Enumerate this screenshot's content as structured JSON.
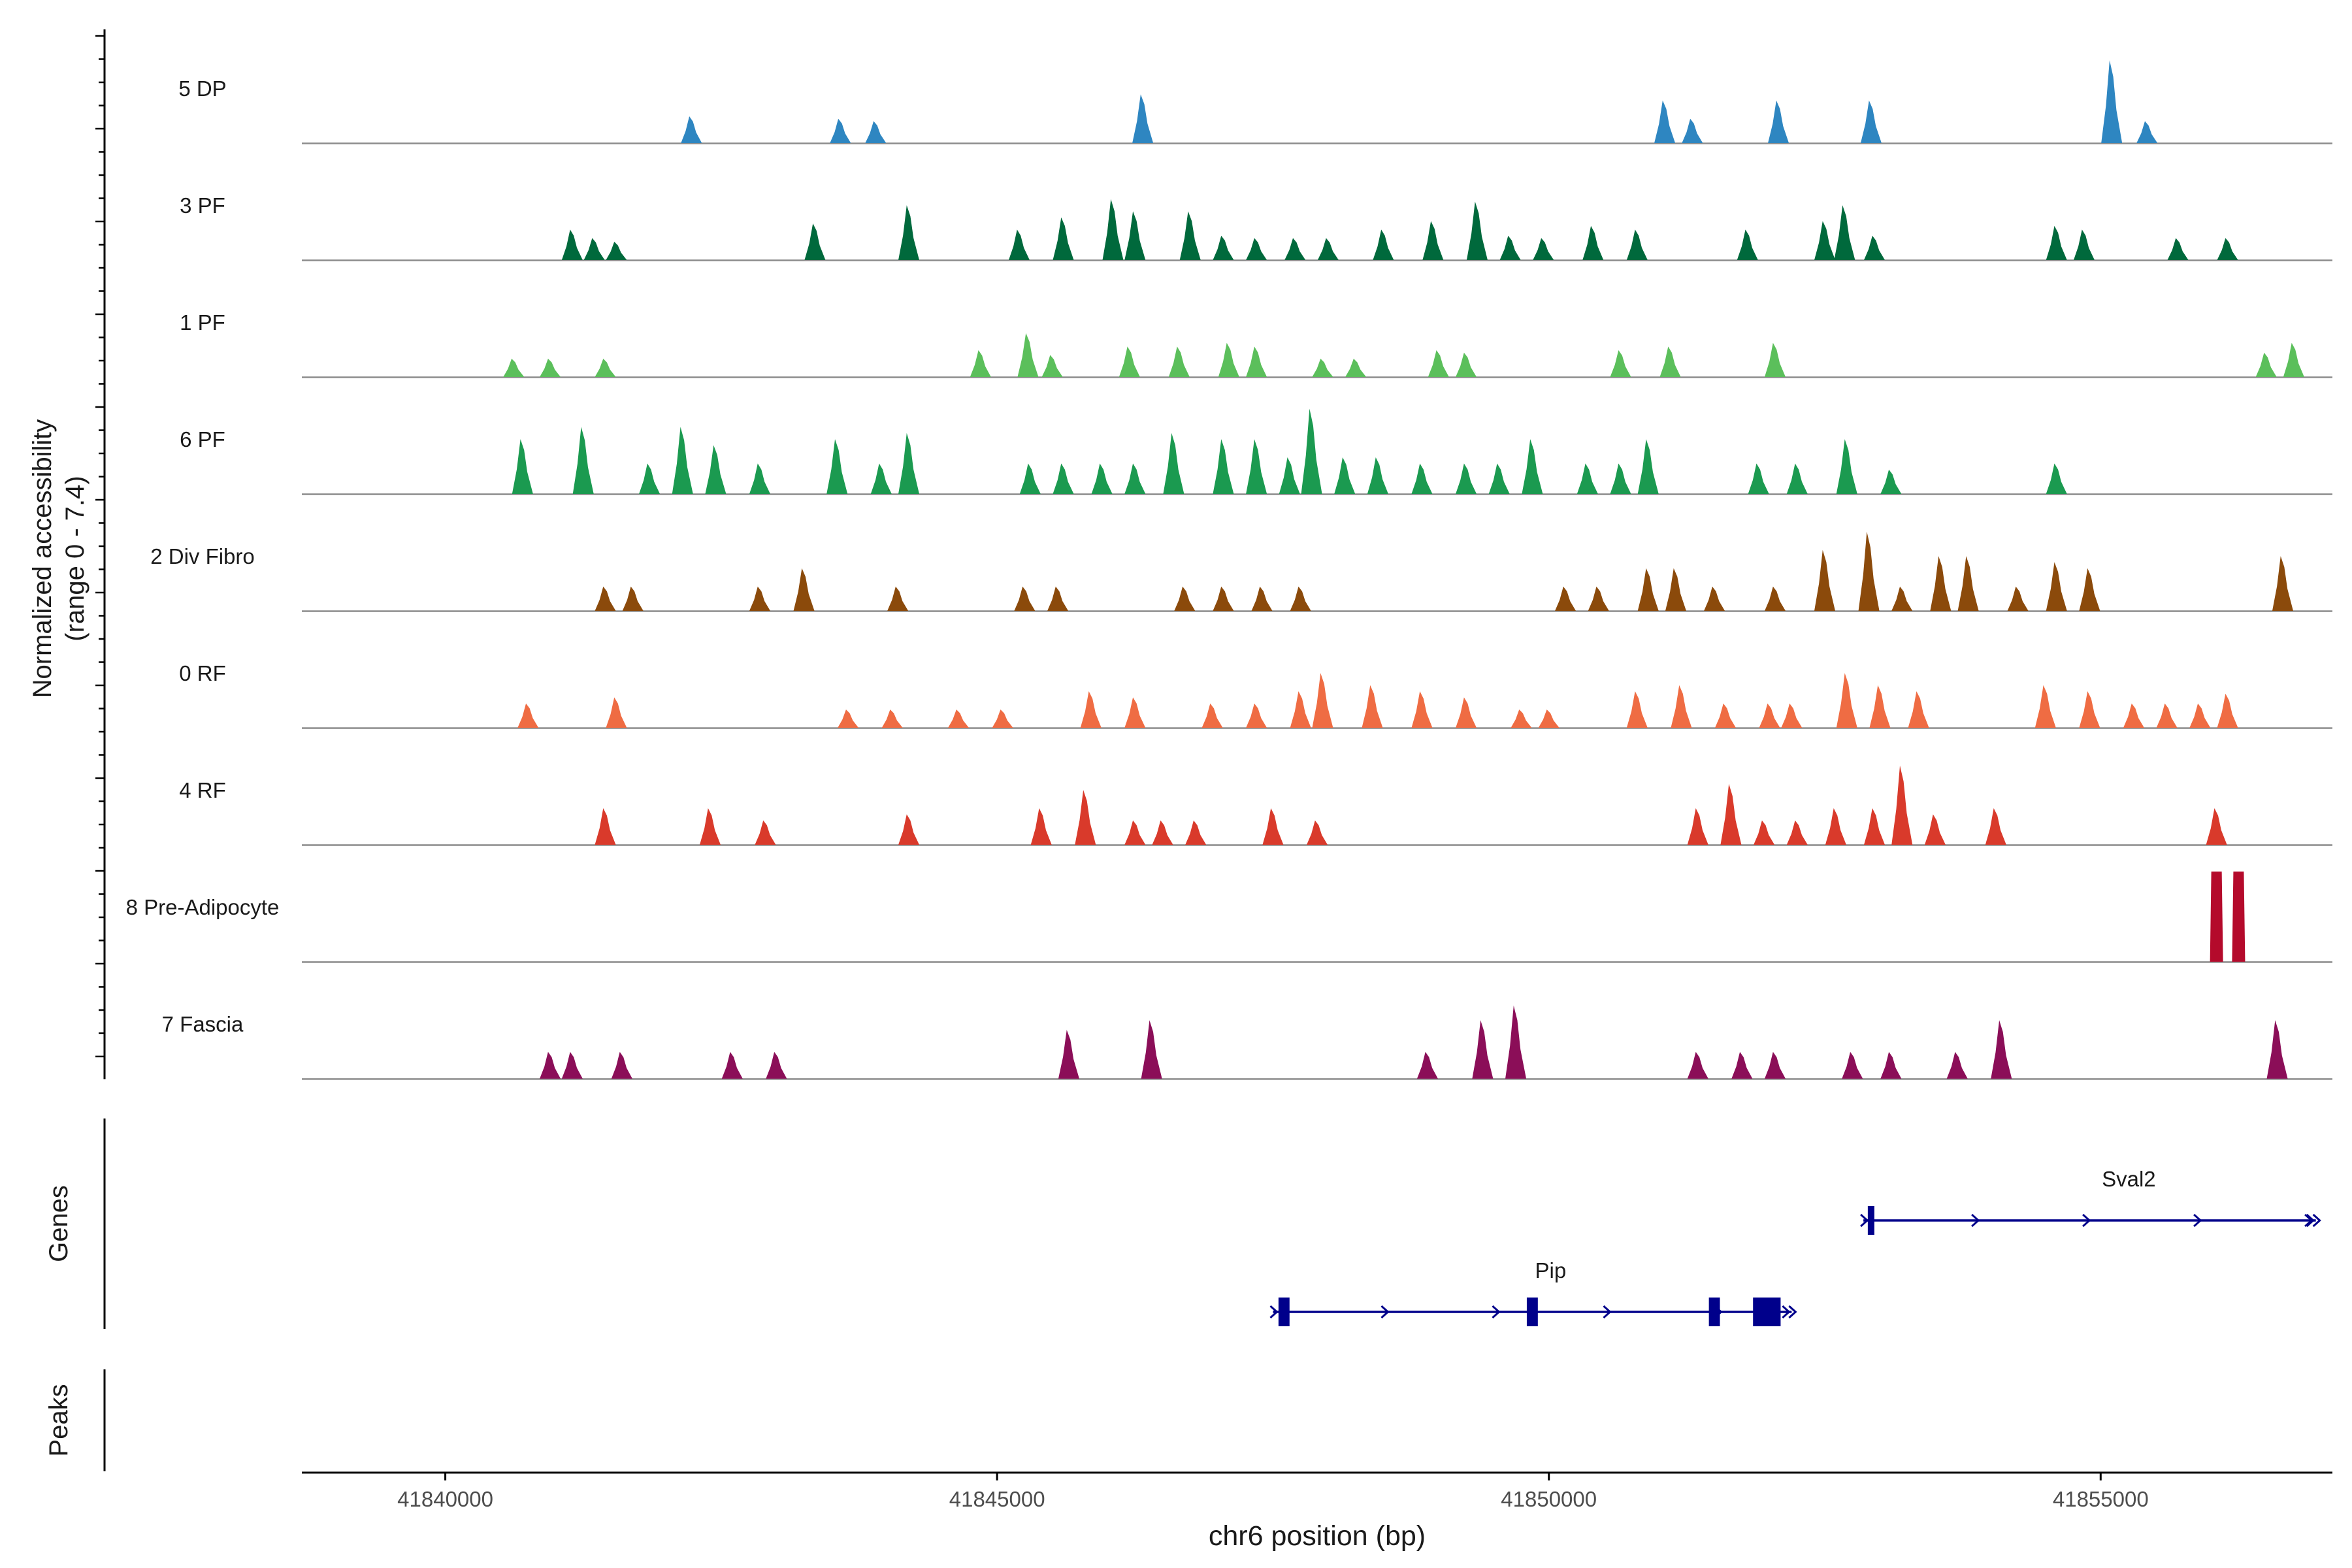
{
  "chart_data": {
    "type": "area",
    "title": "",
    "ylabel": "Normalized accessibility\n(range 0 - 7.4)",
    "y_range": [
      0,
      7.4
    ],
    "xlabel": "chr6 position (bp)",
    "x_range": [
      41838700,
      41857100
    ],
    "x_ticks": [
      41840000,
      41845000,
      41850000,
      41855000
    ],
    "tracks": [
      {
        "name": "5 DP",
        "color": "#2e86c1",
        "peaks": [
          [
            41842230,
            2.2
          ],
          [
            41843580,
            2.0
          ],
          [
            41843900,
            1.8
          ],
          [
            41846320,
            4.0
          ],
          [
            41851050,
            3.5
          ],
          [
            41851300,
            2.0
          ],
          [
            41852080,
            3.5
          ],
          [
            41852920,
            3.5
          ],
          [
            41855100,
            6.8
          ],
          [
            41855420,
            1.8
          ]
        ]
      },
      {
        "name": "3 PF",
        "color": "#00693c",
        "peaks": [
          [
            41841150,
            2.5
          ],
          [
            41841350,
            1.8
          ],
          [
            41841550,
            1.5
          ],
          [
            41843350,
            3.0
          ],
          [
            41844200,
            4.5
          ],
          [
            41845200,
            2.5
          ],
          [
            41845600,
            3.5
          ],
          [
            41846050,
            5.0
          ],
          [
            41846250,
            4.0
          ],
          [
            41846750,
            4.0
          ],
          [
            41847050,
            2.0
          ],
          [
            41847350,
            1.8
          ],
          [
            41847700,
            1.8
          ],
          [
            41848000,
            1.8
          ],
          [
            41848500,
            2.5
          ],
          [
            41848950,
            3.2
          ],
          [
            41849350,
            4.8
          ],
          [
            41849650,
            2.0
          ],
          [
            41849950,
            1.8
          ],
          [
            41850400,
            2.8
          ],
          [
            41850800,
            2.5
          ],
          [
            41851800,
            2.5
          ],
          [
            41852500,
            3.2
          ],
          [
            41852680,
            4.5
          ],
          [
            41852950,
            2.0
          ],
          [
            41854600,
            2.8
          ],
          [
            41854850,
            2.5
          ],
          [
            41855700,
            1.8
          ],
          [
            41856150,
            1.8
          ]
        ]
      },
      {
        "name": "1 PF",
        "color": "#5bbf5b",
        "peaks": [
          [
            41840620,
            1.5
          ],
          [
            41840950,
            1.5
          ],
          [
            41841450,
            1.5
          ],
          [
            41844850,
            2.2
          ],
          [
            41845280,
            3.6
          ],
          [
            41845500,
            1.8
          ],
          [
            41846200,
            2.5
          ],
          [
            41846650,
            2.5
          ],
          [
            41847100,
            2.8
          ],
          [
            41847350,
            2.5
          ],
          [
            41847950,
            1.5
          ],
          [
            41848250,
            1.5
          ],
          [
            41849000,
            2.2
          ],
          [
            41849250,
            2.0
          ],
          [
            41850650,
            2.2
          ],
          [
            41851100,
            2.5
          ],
          [
            41852050,
            2.8
          ],
          [
            41856500,
            2.0
          ],
          [
            41856750,
            2.8
          ]
        ]
      },
      {
        "name": "6 PF",
        "color": "#1b9a50",
        "peaks": [
          [
            41840700,
            4.5
          ],
          [
            41841250,
            5.5
          ],
          [
            41841850,
            2.5
          ],
          [
            41842150,
            5.5
          ],
          [
            41842450,
            4.0
          ],
          [
            41842850,
            2.5
          ],
          [
            41843550,
            4.5
          ],
          [
            41843950,
            2.5
          ],
          [
            41844200,
            5.0
          ],
          [
            41845300,
            2.5
          ],
          [
            41845600,
            2.5
          ],
          [
            41845950,
            2.5
          ],
          [
            41846250,
            2.5
          ],
          [
            41846600,
            5.0
          ],
          [
            41847050,
            4.5
          ],
          [
            41847350,
            4.5
          ],
          [
            41847650,
            3.0
          ],
          [
            41847850,
            7.0
          ],
          [
            41848150,
            3.0
          ],
          [
            41848450,
            3.0
          ],
          [
            41848850,
            2.5
          ],
          [
            41849250,
            2.5
          ],
          [
            41849550,
            2.5
          ],
          [
            41849850,
            4.5
          ],
          [
            41850350,
            2.5
          ],
          [
            41850650,
            2.5
          ],
          [
            41850900,
            4.5
          ],
          [
            41851900,
            2.5
          ],
          [
            41852250,
            2.5
          ],
          [
            41852700,
            4.5
          ],
          [
            41853100,
            2.0
          ],
          [
            41854600,
            2.5
          ]
        ]
      },
      {
        "name": "2 Div Fibro",
        "color": "#8b4a0b",
        "peaks": [
          [
            41841450,
            2.0
          ],
          [
            41841700,
            2.0
          ],
          [
            41842850,
            2.0
          ],
          [
            41843250,
            3.5
          ],
          [
            41844100,
            2.0
          ],
          [
            41845250,
            2.0
          ],
          [
            41845550,
            2.0
          ],
          [
            41846700,
            2.0
          ],
          [
            41847050,
            2.0
          ],
          [
            41847400,
            2.0
          ],
          [
            41847750,
            2.0
          ],
          [
            41850150,
            2.0
          ],
          [
            41850450,
            2.0
          ],
          [
            41850900,
            3.5
          ],
          [
            41851150,
            3.5
          ],
          [
            41851500,
            2.0
          ],
          [
            41852050,
            2.0
          ],
          [
            41852500,
            5.0
          ],
          [
            41852900,
            6.5
          ],
          [
            41853200,
            2.0
          ],
          [
            41853550,
            4.5
          ],
          [
            41853800,
            4.5
          ],
          [
            41854250,
            2.0
          ],
          [
            41854600,
            4.0
          ],
          [
            41854900,
            3.5
          ],
          [
            41856650,
            4.5
          ]
        ]
      },
      {
        "name": "0 RF",
        "color": "#ef6c43",
        "peaks": [
          [
            41840750,
            2.0
          ],
          [
            41841550,
            2.5
          ],
          [
            41843650,
            1.5
          ],
          [
            41844050,
            1.5
          ],
          [
            41844650,
            1.5
          ],
          [
            41845050,
            1.5
          ],
          [
            41845850,
            3.0
          ],
          [
            41846250,
            2.5
          ],
          [
            41846950,
            2.0
          ],
          [
            41847350,
            2.0
          ],
          [
            41847750,
            3.0
          ],
          [
            41847950,
            4.5
          ],
          [
            41848400,
            3.5
          ],
          [
            41848850,
            3.0
          ],
          [
            41849250,
            2.5
          ],
          [
            41849750,
            1.5
          ],
          [
            41850000,
            1.5
          ],
          [
            41850800,
            3.0
          ],
          [
            41851200,
            3.5
          ],
          [
            41851600,
            2.0
          ],
          [
            41852000,
            2.0
          ],
          [
            41852200,
            2.0
          ],
          [
            41852700,
            4.5
          ],
          [
            41853000,
            3.5
          ],
          [
            41853350,
            3.0
          ],
          [
            41854500,
            3.5
          ],
          [
            41854900,
            3.0
          ],
          [
            41855300,
            2.0
          ],
          [
            41855600,
            2.0
          ],
          [
            41855900,
            2.0
          ],
          [
            41856150,
            2.8
          ]
        ]
      },
      {
        "name": "4 RF",
        "color": "#d93a2b",
        "peaks": [
          [
            41841450,
            3.0
          ],
          [
            41842400,
            3.0
          ],
          [
            41842900,
            2.0
          ],
          [
            41844200,
            2.5
          ],
          [
            41845400,
            3.0
          ],
          [
            41845800,
            4.5
          ],
          [
            41846250,
            2.0
          ],
          [
            41846500,
            2.0
          ],
          [
            41846800,
            2.0
          ],
          [
            41847500,
            3.0
          ],
          [
            41847900,
            2.0
          ],
          [
            41851350,
            3.0
          ],
          [
            41851650,
            5.0
          ],
          [
            41851950,
            2.0
          ],
          [
            41852250,
            2.0
          ],
          [
            41852600,
            3.0
          ],
          [
            41852950,
            3.0
          ],
          [
            41853200,
            6.5
          ],
          [
            41853500,
            2.5
          ],
          [
            41854050,
            3.0
          ],
          [
            41856050,
            3.0
          ]
        ]
      },
      {
        "name": "8 Pre-Adipocyte",
        "color": "#b40a2b",
        "peaks": [
          [
            41856050,
            7.4
          ],
          [
            41856250,
            7.4
          ]
        ]
      },
      {
        "name": "7 Fascia",
        "color": "#8b0e58",
        "peaks": [
          [
            41840950,
            2.2
          ],
          [
            41841150,
            2.2
          ],
          [
            41841600,
            2.2
          ],
          [
            41842600,
            2.2
          ],
          [
            41843000,
            2.2
          ],
          [
            41845650,
            4.0
          ],
          [
            41846400,
            4.8
          ],
          [
            41848900,
            2.2
          ],
          [
            41849400,
            4.8
          ],
          [
            41849700,
            6.0
          ],
          [
            41851350,
            2.2
          ],
          [
            41851750,
            2.2
          ],
          [
            41852050,
            2.2
          ],
          [
            41852750,
            2.2
          ],
          [
            41853100,
            2.2
          ],
          [
            41853700,
            2.2
          ],
          [
            41854100,
            4.8
          ],
          [
            41856600,
            4.8
          ]
        ]
      }
    ],
    "genes": [
      {
        "name": "Pip",
        "strand": "+",
        "start": 41847500,
        "end": 41852200,
        "exons": [
          [
            41847550,
            41847650
          ],
          [
            41849800,
            41849900
          ],
          [
            41851450,
            41851550
          ],
          [
            41851850,
            41852100
          ]
        ]
      },
      {
        "name": "Sval2",
        "strand": "+",
        "start": 41852850,
        "end": 41856950,
        "exons": [
          [
            41852890,
            41852940
          ]
        ]
      }
    ],
    "panel_labels": {
      "genes": "Genes",
      "peaks": "Peaks"
    }
  }
}
